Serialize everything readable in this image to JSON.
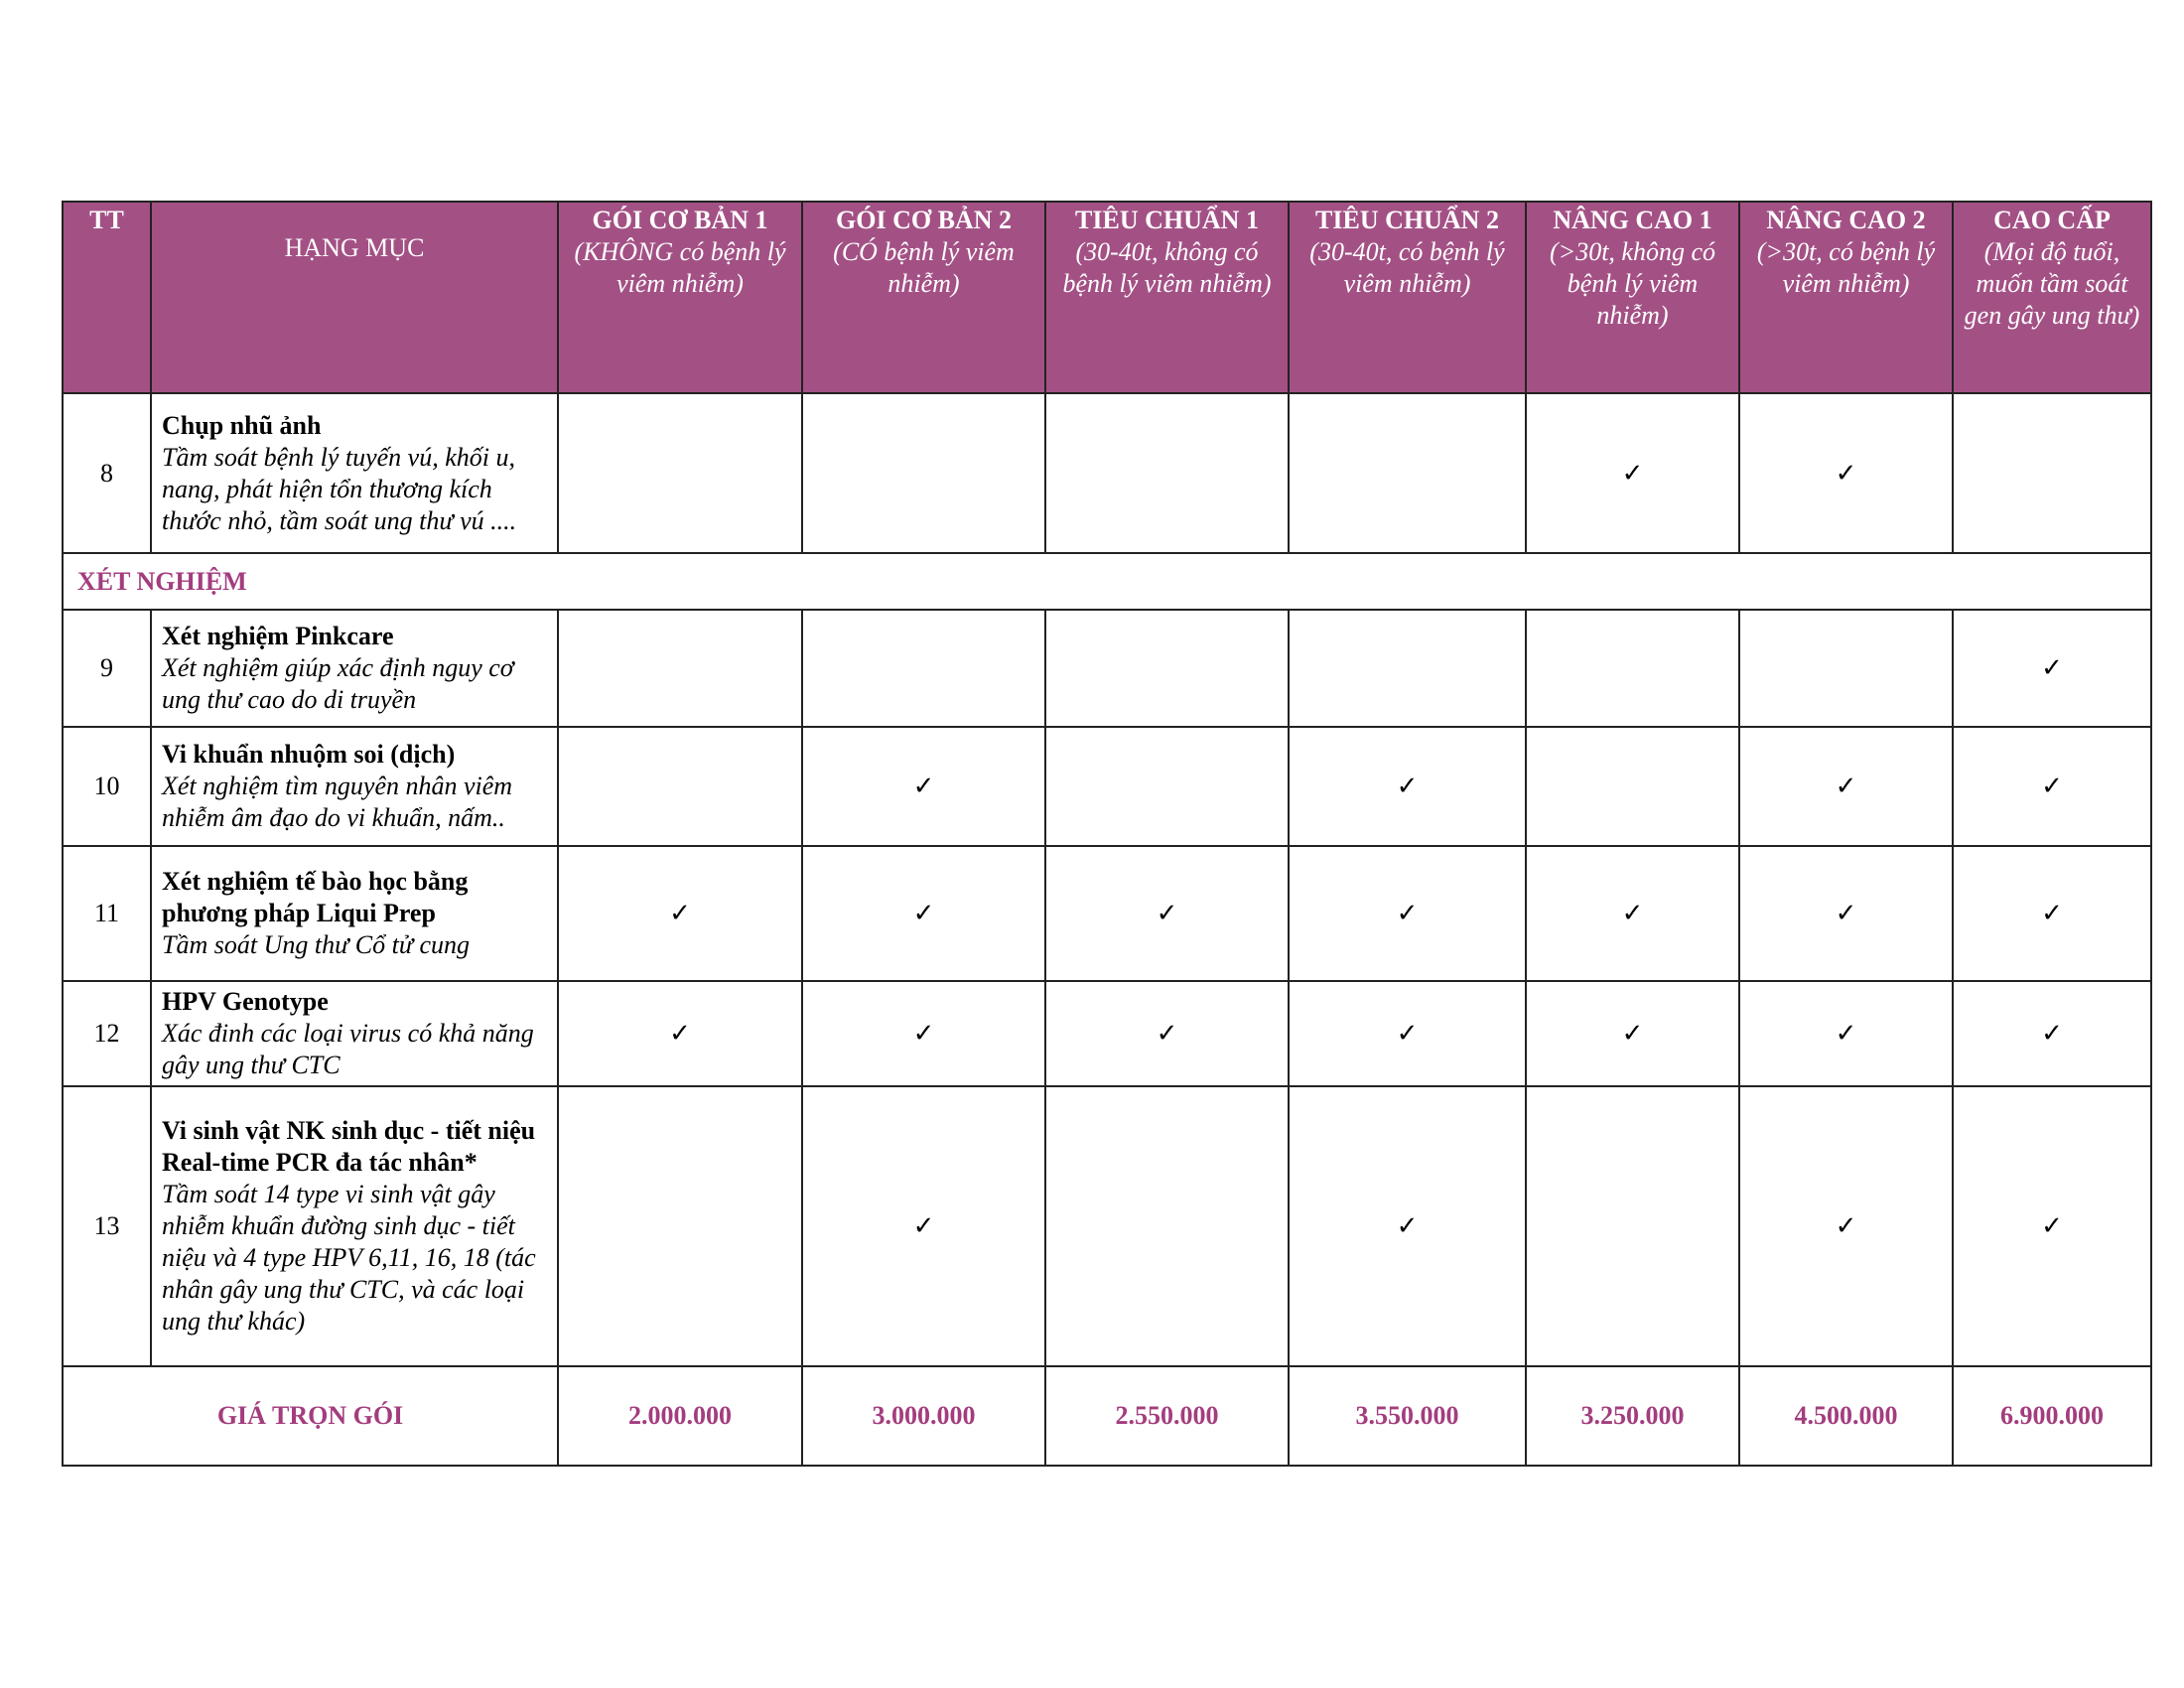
{
  "colors": {
    "header_bg": "#a35185",
    "accent_text": "#a33d7e"
  },
  "header": {
    "tt": "TT",
    "item": "HẠNG MỤC",
    "packages": [
      {
        "title": "GÓI CƠ BẢN 1",
        "subtitle": "(KHÔNG có bệnh lý viêm nhiễm)"
      },
      {
        "title": "GÓI CƠ BẢN 2",
        "subtitle": "(CÓ bệnh lý viêm nhiễm)"
      },
      {
        "title": "TIÊU CHUẨN 1",
        "subtitle": "(30-40t, không có bệnh lý viêm nhiễm)"
      },
      {
        "title": "TIÊU CHUẨN 2",
        "subtitle": "(30-40t, có bệnh lý viêm nhiễm)"
      },
      {
        "title": "NÂNG CAO 1",
        "subtitle": "(>30t, không có bệnh lý viêm nhiễm)"
      },
      {
        "title": "NÂNG CAO 2",
        "subtitle": "(>30t, có bệnh lý viêm nhiễm)"
      },
      {
        "title": "CAO CẤP",
        "subtitle": "(Mọi độ tuổi, muốn tầm soát gen gây ung thư)"
      }
    ]
  },
  "check_icon": "check-mark",
  "check_glyph": "✓",
  "rows": [
    {
      "tt": "8",
      "name": "Chụp nhũ ảnh",
      "desc": "Tầm soát bệnh lý tuyến vú, khối u, nang, phát hiện tổn thương kích thước nhỏ, tầm soát ung thư vú ....",
      "checks": [
        false,
        false,
        false,
        false,
        true,
        true,
        false
      ]
    },
    {
      "section": "XÉT NGHIỆM"
    },
    {
      "tt": "9",
      "name": "Xét nghiệm Pinkcare",
      "desc": "Xét nghiệm giúp xác định nguy cơ ung thư cao do di truyền",
      "checks": [
        false,
        false,
        false,
        false,
        false,
        false,
        true
      ]
    },
    {
      "tt": "10",
      "name": "Vi khuẩn nhuộm soi (dịch)",
      "desc": "Xét nghiệm tìm nguyên nhân viêm nhiễm âm đạo do vi khuẩn, nấm..",
      "checks": [
        false,
        true,
        false,
        true,
        false,
        true,
        true
      ]
    },
    {
      "tt": "11",
      "name": "Xét nghiệm tế bào học bằng phương pháp Liqui Prep",
      "desc": "Tầm soát Ung thư Cổ tử cung",
      "checks": [
        true,
        true,
        true,
        true,
        true,
        true,
        true
      ]
    },
    {
      "tt": "12",
      "name": "HPV Genotype",
      "desc": "Xác đinh các loại virus có khả năng gây ung thư CTC",
      "checks": [
        true,
        true,
        true,
        true,
        true,
        true,
        true
      ]
    },
    {
      "tt": "13",
      "name": "Vi sinh vật NK sinh dục - tiết niệu Real-time PCR đa tác nhân*",
      "desc": "Tầm soát 14 type vi sinh vật gây nhiễm khuẩn đường sinh dục - tiết niệu và 4 type HPV 6,11, 16, 18 (tác nhân gây ung thư CTC, và các loại ung thư khác)",
      "checks": [
        false,
        true,
        false,
        true,
        false,
        true,
        true
      ]
    }
  ],
  "price": {
    "label": "GIÁ TRỌN GÓI",
    "values": [
      "2.000.000",
      "3.000.000",
      "2.550.000",
      "3.550.000",
      "3.250.000",
      "4.500.000",
      "6.900.000"
    ]
  }
}
